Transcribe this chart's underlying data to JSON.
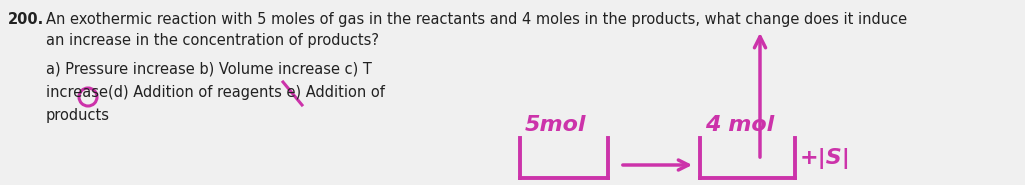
{
  "background_color": "#f0f0f0",
  "text_color": "#222222",
  "magenta_color": "#cc33aa",
  "question_number": "200.",
  "question_line1": " An exothermic reaction with 5 moles of gas in the reactants and 4 moles in the products, what change does it induce",
  "question_line2": "an increase in the concentration of products?",
  "options_line1": "a) Pressure increase b) Volume increase c) T",
  "options_line2": "increase(d) Addition of reagents e) Addition of",
  "options_line3": "products",
  "label_left": "5mol",
  "label_right": "4 mol",
  "suffix_right": "+|S|",
  "fontsize_text": 10.5,
  "fontsize_diagram": 16
}
